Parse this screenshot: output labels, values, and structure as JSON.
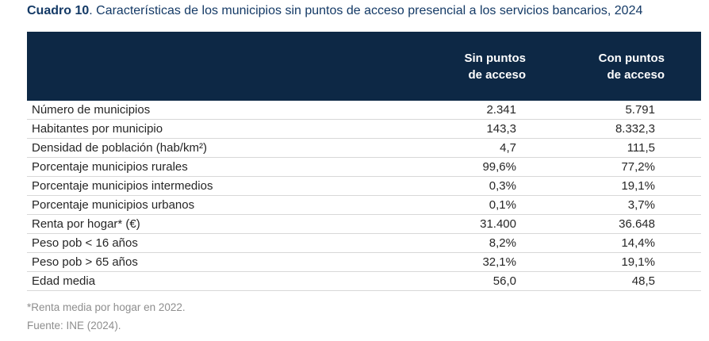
{
  "title": {
    "bold": "Cuadro 10",
    "rest": ". Características de los municipios sin puntos de acceso presencial a los servicios bancarios, 2024"
  },
  "table": {
    "columns": [
      {
        "line1": "Sin puntos",
        "line2": "de acceso"
      },
      {
        "line1": "Con puntos",
        "line2": "de acceso"
      }
    ],
    "rows": [
      {
        "label": "Número de municipios",
        "sin": "2.341",
        "con": "5.791"
      },
      {
        "label": "Habitantes por municipio",
        "sin": "143,3",
        "con": "8.332,3"
      },
      {
        "label": "Densidad de población (hab/km²)",
        "sin": "4,7",
        "con": "111,5"
      },
      {
        "label": "Porcentaje municipios rurales",
        "sin": "99,6%",
        "con": "77,2%"
      },
      {
        "label": "Porcentaje municipios intermedios",
        "sin": "0,3%",
        "con": "19,1%"
      },
      {
        "label": "Porcentaje municipios urbanos",
        "sin": "0,1%",
        "con": "3,7%"
      },
      {
        "label": "Renta por hogar* (€)",
        "sin": "31.400",
        "con": "36.648"
      },
      {
        "label": "Peso pob < 16 años",
        "sin": "8,2%",
        "con": "14,4%"
      },
      {
        "label": "Peso pob > 65 años",
        "sin": "32,1%",
        "con": "19,1%"
      },
      {
        "label": "Edad media",
        "sin": "56,0",
        "con": "48,5"
      }
    ]
  },
  "footnotes": [
    "*Renta media por hogar en 2022.",
    "Fuente: INE (2024)."
  ],
  "colors": {
    "header_bg": "#0d2845",
    "header_text": "#ffffff",
    "title_text": "#143a66",
    "body_text": "#262626",
    "row_divider": "#d8d8d8",
    "footnote_text": "#8e8e8e",
    "background": "#ffffff"
  }
}
